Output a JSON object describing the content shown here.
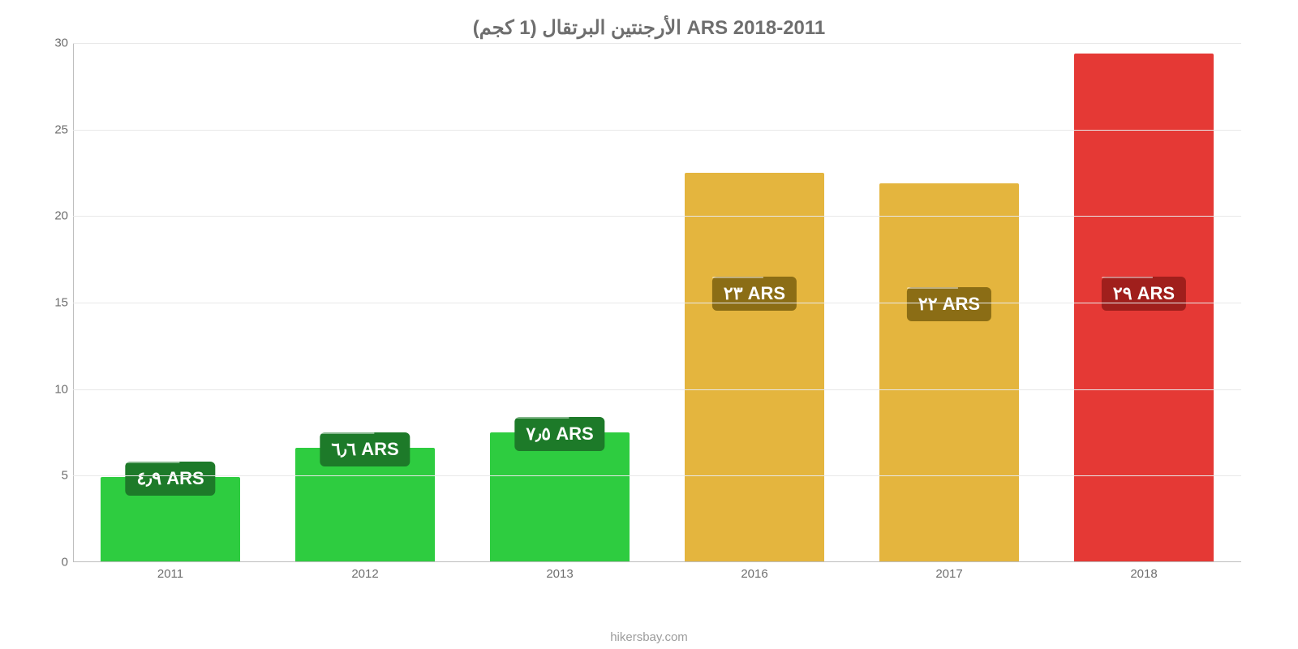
{
  "chart": {
    "type": "bar",
    "title": "الأرجنتين البرتقال (1 كجم) ARS 2018-2011",
    "title_color": "#6e6e6e",
    "title_fontsize": 24,
    "background_color": "#ffffff",
    "grid_color": "#e8e8e8",
    "axis_color": "#bdbdbd",
    "label_color": "#6e6e6e",
    "label_fontsize": 15,
    "ylim": [
      0,
      30
    ],
    "yticks": [
      0,
      5,
      10,
      15,
      20,
      25,
      30
    ],
    "bar_width": 0.72,
    "categories": [
      "2011",
      "2012",
      "2013",
      "2016",
      "2017",
      "2018"
    ],
    "values": [
      4.9,
      6.6,
      7.5,
      22.5,
      21.9,
      29.4
    ],
    "bar_colors": [
      "#2ecc40",
      "#2ecc40",
      "#2ecc40",
      "#e4b53e",
      "#e4b53e",
      "#e53935"
    ],
    "value_labels": [
      "٤٫٩ ARS",
      "٦٫٦ ARS",
      "٧٫٥ ARS",
      "٢٣ ARS",
      "٢٢ ARS",
      "٢٩ ARS"
    ],
    "badge_colors": [
      "#1d7a29",
      "#1d7a29",
      "#1d7a29",
      "#8b6d15",
      "#8b6d15",
      "#a01f1c"
    ],
    "badge_fontsize": 22,
    "attribution": "hikersbay.com",
    "attribution_color": "#9c9c9c"
  }
}
